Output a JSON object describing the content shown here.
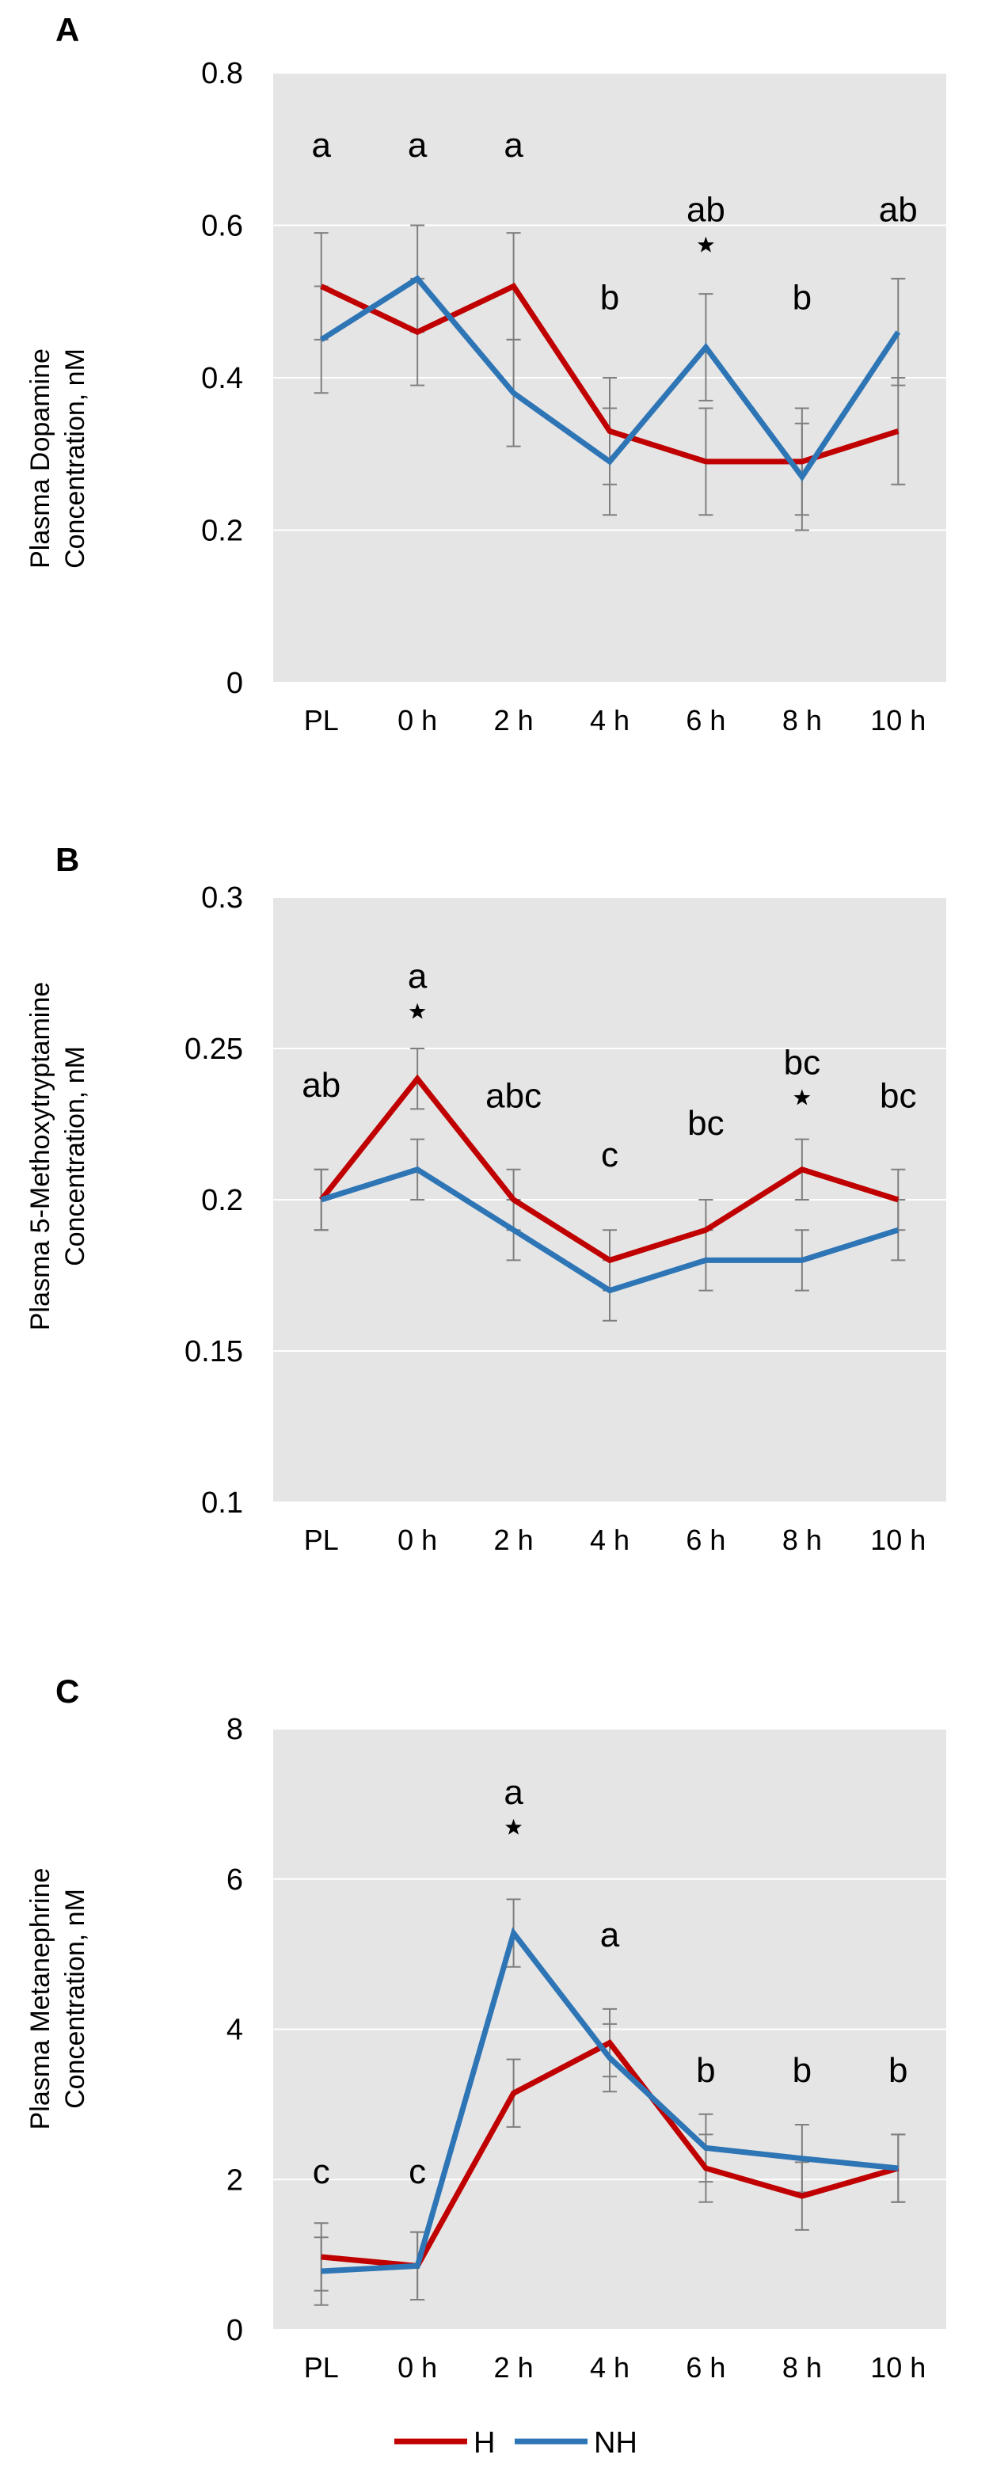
{
  "colors": {
    "H": "#c00000",
    "NH": "#2e75b6",
    "plot_bg": "#e5e5e5",
    "grid": "#ffffff",
    "error_bar": "#7f7f7f"
  },
  "legend": {
    "items": [
      {
        "key": "H",
        "label": "H"
      },
      {
        "key": "NH",
        "label": "NH"
      }
    ]
  },
  "chart_data": [
    {
      "type": "line",
      "panel": "A",
      "ylabel_line1": "Plasma Dopamine",
      "ylabel_line2": "Concentration, nM",
      "categories": [
        "PL",
        "0 h",
        "2 h",
        "4 h",
        "6 h",
        "8 h",
        "10 h"
      ],
      "ylim": [
        0,
        0.8
      ],
      "yticks": [
        "0",
        "0.2",
        "0.4",
        "0.6",
        "0.8"
      ],
      "ytick_values": [
        0,
        0.2,
        0.4,
        0.6,
        0.8
      ],
      "grid": true,
      "series": [
        {
          "name": "H",
          "values": [
            0.52,
            0.46,
            0.52,
            0.33,
            0.29,
            0.29,
            0.33
          ],
          "errors": [
            0.07,
            0.07,
            0.07,
            0.07,
            0.07,
            0.07,
            0.07
          ]
        },
        {
          "name": "NH",
          "values": [
            0.45,
            0.53,
            0.38,
            0.29,
            0.44,
            0.27,
            0.46
          ],
          "errors": [
            0.07,
            0.07,
            0.07,
            0.07,
            0.07,
            0.07,
            0.07
          ]
        }
      ],
      "annotations": [
        {
          "index": 0,
          "letter": "a",
          "star": false,
          "at": 0.69
        },
        {
          "index": 1,
          "letter": "a",
          "star": false,
          "at": 0.69
        },
        {
          "index": 2,
          "letter": "a",
          "star": false,
          "at": 0.69
        },
        {
          "index": 3,
          "letter": "b",
          "star": false,
          "at": 0.49
        },
        {
          "index": 4,
          "letter": "ab",
          "star": true,
          "at": 0.605
        },
        {
          "index": 5,
          "letter": "b",
          "star": false,
          "at": 0.49
        },
        {
          "index": 6,
          "letter": "ab",
          "star": false,
          "at": 0.605
        }
      ]
    },
    {
      "type": "line",
      "panel": "B",
      "ylabel_line1": "Plasma 5-Methoxytryptamine",
      "ylabel_line2": "Concentration, nM",
      "categories": [
        "PL",
        "0 h",
        "2 h",
        "4 h",
        "6 h",
        "8 h",
        "10 h"
      ],
      "ylim": [
        0.1,
        0.3
      ],
      "yticks": [
        "0.1",
        "0.15",
        "0.2",
        "0.25",
        "0.3"
      ],
      "ytick_values": [
        0.1,
        0.15,
        0.2,
        0.25,
        0.3
      ],
      "grid": true,
      "series": [
        {
          "name": "H",
          "values": [
            0.2,
            0.24,
            0.2,
            0.18,
            0.19,
            0.21,
            0.2
          ],
          "errors": [
            0.01,
            0.01,
            0.01,
            0.01,
            0.01,
            0.01,
            0.01
          ]
        },
        {
          "name": "NH",
          "values": [
            0.2,
            0.21,
            0.19,
            0.17,
            0.18,
            0.18,
            0.19
          ],
          "errors": [
            0.01,
            0.01,
            0.01,
            0.01,
            0.01,
            0.01,
            0.01
          ]
        }
      ],
      "annotations": [
        {
          "index": 0,
          "letter": "ab",
          "star": false,
          "at": 0.234
        },
        {
          "index": 1,
          "letter": "a",
          "star": true,
          "at": 0.27
        },
        {
          "index": 2,
          "letter": "abc",
          "star": false,
          "at": 0.2305
        },
        {
          "index": 3,
          "letter": "c",
          "star": false,
          "at": 0.211
        },
        {
          "index": 4,
          "letter": "bc",
          "star": false,
          "at": 0.2215
        },
        {
          "index": 5,
          "letter": "bc",
          "star": true,
          "at": 0.2415
        },
        {
          "index": 6,
          "letter": "bc",
          "star": false,
          "at": 0.2305
        }
      ]
    },
    {
      "type": "line",
      "panel": "C",
      "ylabel_line1": "Plasma Metanephrine",
      "ylabel_line2": "Concentration, nM",
      "categories": [
        "PL",
        "0 h",
        "2 h",
        "4 h",
        "6 h",
        "8 h",
        "10 h"
      ],
      "ylim": [
        0,
        8
      ],
      "yticks": [
        "0",
        "2",
        "4",
        "6",
        "8"
      ],
      "ytick_values": [
        0,
        2,
        4,
        6,
        8
      ],
      "grid": true,
      "series": [
        {
          "name": "H",
          "values": [
            0.97,
            0.85,
            3.15,
            3.82,
            2.15,
            1.78,
            2.15
          ],
          "errors": [
            0.45,
            0.45,
            0.45,
            0.45,
            0.45,
            0.45,
            0.45
          ]
        },
        {
          "name": "NH",
          "values": [
            0.78,
            0.85,
            5.28,
            3.62,
            2.42,
            2.28,
            2.15
          ],
          "errors": [
            0.45,
            0.45,
            0.45,
            0.45,
            0.45,
            0.45,
            0.45
          ]
        }
      ],
      "annotations": [
        {
          "index": 0,
          "letter": "c",
          "star": false,
          "at": 1.95
        },
        {
          "index": 1,
          "letter": "c",
          "star": false,
          "at": 1.95
        },
        {
          "index": 2,
          "letter": "a",
          "star": true,
          "at": 7.0
        },
        {
          "index": 3,
          "letter": "a",
          "star": false,
          "at": 5.1
        },
        {
          "index": 4,
          "letter": "b",
          "star": false,
          "at": 3.3
        },
        {
          "index": 5,
          "letter": "b",
          "star": false,
          "at": 3.3
        },
        {
          "index": 6,
          "letter": "b",
          "star": false,
          "at": 3.3
        }
      ]
    }
  ]
}
